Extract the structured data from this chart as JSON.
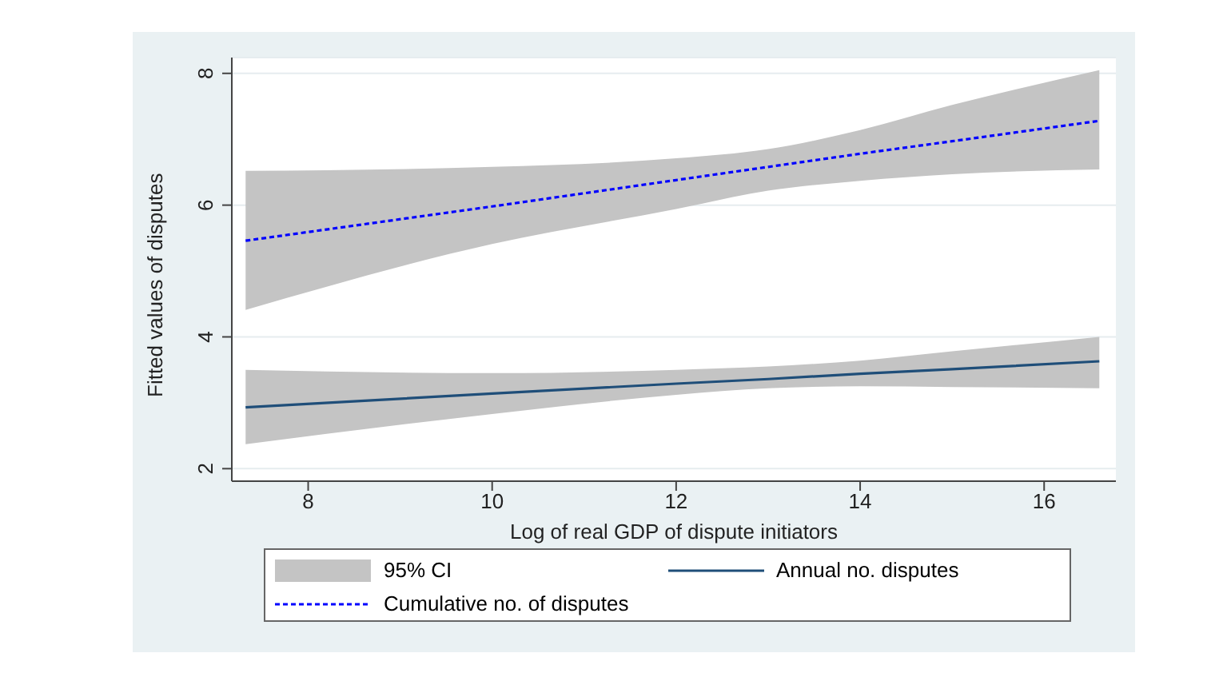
{
  "chart_data": {
    "type": "line",
    "xlabel": "Log of real GDP of dispute initiators",
    "ylabel": "Fitted values of disputes",
    "xlim": [
      7.17,
      16.78
    ],
    "xticks": [
      8,
      10,
      12,
      14,
      16
    ],
    "ylim": [
      1.81,
      8.24
    ],
    "yticks": [
      2,
      4,
      6,
      8
    ],
    "grid": "y",
    "legend": "bottom",
    "marker": "none",
    "annotations": [
      "95% CI"
    ],
    "series": [
      {
        "name": "Annual no. disputes",
        "color": "#1f4e79",
        "line_style": "solid",
        "x": [
          7.32,
          10,
          12,
          13,
          14,
          15,
          16.6
        ],
        "values": [
          2.93,
          3.14,
          3.29,
          3.36,
          3.44,
          3.51,
          3.63
        ],
        "lower": [
          2.37,
          2.83,
          3.12,
          3.22,
          3.25,
          3.24,
          3.22
        ],
        "upper": [
          3.5,
          3.45,
          3.5,
          3.55,
          3.64,
          3.78,
          4.0
        ]
      },
      {
        "name": "Cumulative no. of disputes",
        "color": "#0000ff",
        "line_style": "dashed",
        "x": [
          7.32,
          10,
          12,
          13,
          14,
          15,
          16.6
        ],
        "values": [
          5.46,
          5.98,
          6.38,
          6.58,
          6.78,
          6.97,
          7.28
        ],
        "lower": [
          4.41,
          5.41,
          5.94,
          6.22,
          6.37,
          6.47,
          6.54
        ],
        "upper": [
          6.52,
          6.58,
          6.71,
          6.85,
          7.14,
          7.52,
          8.05
        ]
      }
    ]
  }
}
